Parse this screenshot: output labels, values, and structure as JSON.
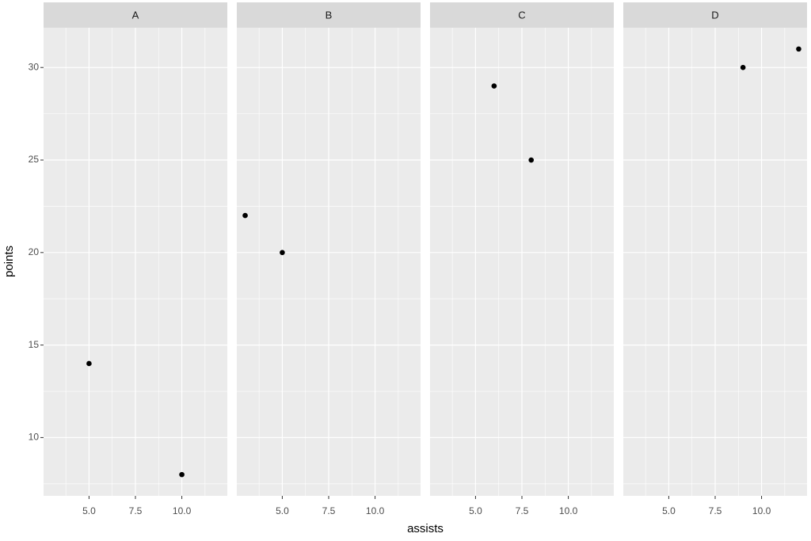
{
  "chart_data": {
    "type": "scatter",
    "xlabel": "assists",
    "ylabel": "points",
    "color": "#000000",
    "grid": true,
    "xlim": [
      2.55,
      12.45
    ],
    "xticks": [
      {
        "value": 5,
        "label": "5.0"
      },
      {
        "value": 7.5,
        "label": "7.5"
      },
      {
        "value": 10,
        "label": "10.0"
      }
    ],
    "xminorticks": [
      3.75,
      6.25,
      8.75,
      11.25
    ],
    "ylim": [
      6.85,
      32.15
    ],
    "yticks": [
      10,
      15,
      20,
      25,
      30
    ],
    "yminorticks": [
      7.5,
      12.5,
      17.5,
      22.5,
      27.5
    ],
    "facets": [
      {
        "name": "A",
        "x": [
          5,
          10
        ],
        "y": [
          14,
          8
        ]
      },
      {
        "name": "B",
        "x": [
          3,
          5
        ],
        "y": [
          22,
          20
        ]
      },
      {
        "name": "C",
        "x": [
          6,
          8
        ],
        "y": [
          29,
          25
        ]
      },
      {
        "name": "D",
        "x": [
          9,
          12
        ],
        "y": [
          30,
          31
        ]
      }
    ]
  }
}
